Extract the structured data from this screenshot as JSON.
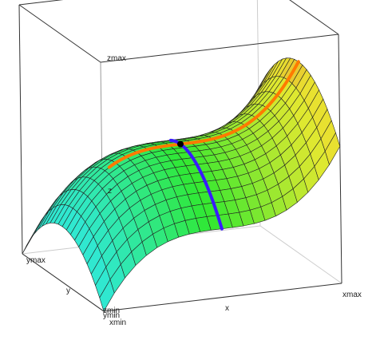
{
  "chart_data": {
    "type": "surface",
    "axis_labels": {
      "zmax": "zmax",
      "z": "z",
      "ymax": "ymax",
      "y": "y",
      "zmin": "zmin",
      "ymin": "ymin",
      "xmin": "xmin",
      "x": "x",
      "xmax": "xmax"
    }
  }
}
